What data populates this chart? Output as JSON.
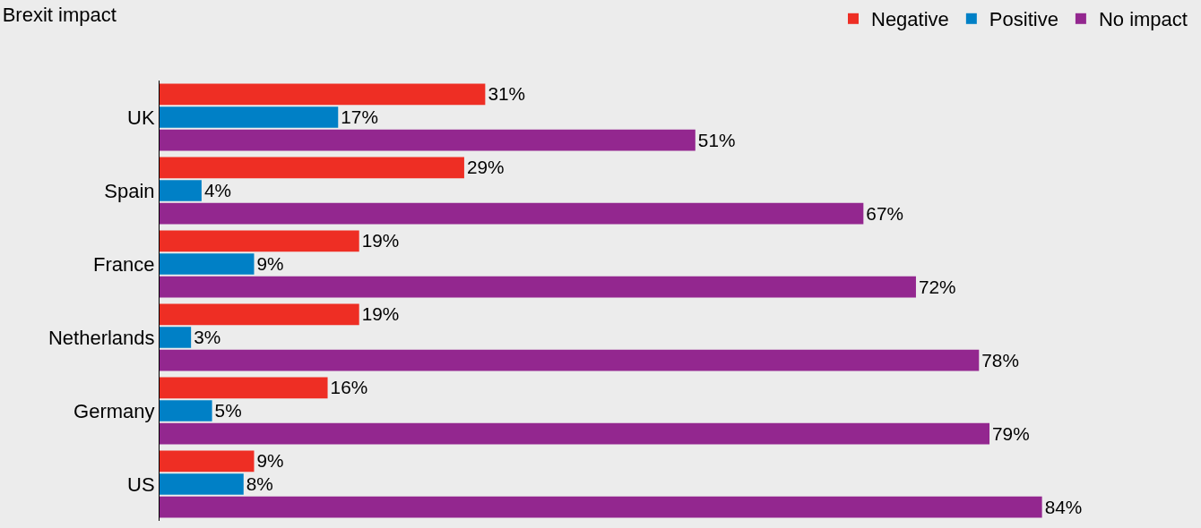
{
  "chart_data": {
    "type": "bar",
    "orientation": "horizontal",
    "title": "Brexit impact",
    "categories": [
      "UK",
      "Spain",
      "France",
      "Netherlands",
      "Germany",
      "US"
    ],
    "series": [
      {
        "name": "Negative",
        "color": "#ee2e24",
        "values": [
          31,
          29,
          19,
          19,
          16,
          9
        ],
        "value_labels": [
          "31%",
          "29%",
          "19%",
          "19%",
          "16%",
          "9%"
        ]
      },
      {
        "name": "Positive",
        "color": "#0080c6",
        "values": [
          17,
          4,
          9,
          3,
          5,
          8
        ],
        "value_labels": [
          "17%",
          "4%",
          "9%",
          "3%",
          "5%",
          "8%"
        ]
      },
      {
        "name": "No impact",
        "color": "#93278f",
        "values": [
          51,
          67,
          72,
          78,
          79,
          84
        ],
        "value_labels": [
          "51%",
          "67%",
          "72%",
          "78%",
          "79%",
          "84%"
        ]
      }
    ],
    "legend": "top right",
    "grid": false
  }
}
